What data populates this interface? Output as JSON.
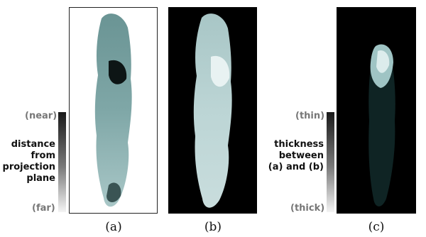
{
  "panel_a": {
    "caption": "(a)"
  },
  "panel_b": {
    "caption": "(b)"
  },
  "panel_c": {
    "caption": "(c)"
  },
  "legend_left": {
    "top_label": "(near)",
    "bottom_label": "(far)",
    "title_lines": [
      "distance",
      "from",
      "projection",
      "plane"
    ]
  },
  "legend_right": {
    "top_label": "(thin)",
    "bottom_label": "(thick)",
    "title_lines": [
      "thickness",
      "between",
      "(a) and (b)"
    ]
  }
}
